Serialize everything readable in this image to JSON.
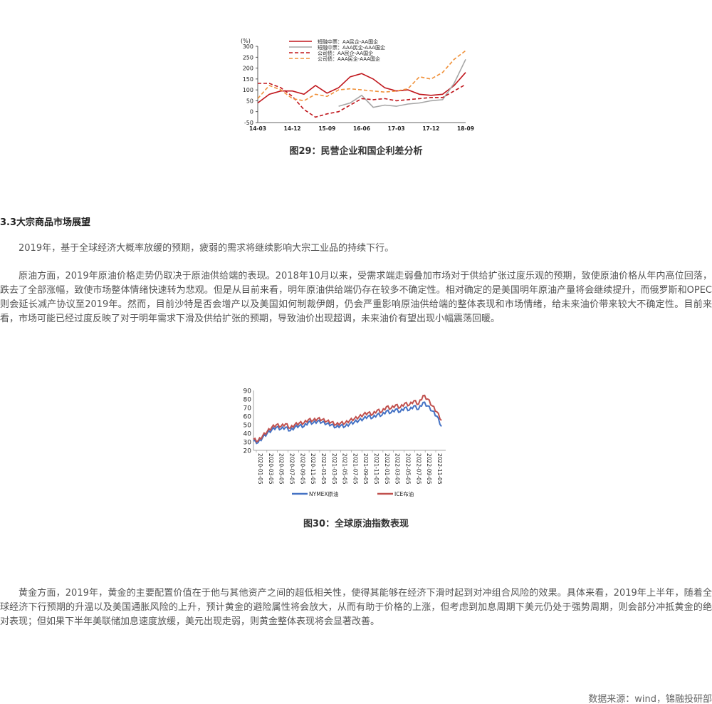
{
  "fig29": {
    "caption": "图29：民营企业和国企利差分析",
    "chart_data": {
      "type": "line",
      "unit": "(%)",
      "x_ticks": [
        "14-03",
        "14-12",
        "15-09",
        "16-06",
        "17-03",
        "17-12",
        "18-09"
      ],
      "ylim": [
        -50,
        300
      ],
      "y_ticks": [
        -50,
        0,
        50,
        100,
        150,
        200,
        250,
        300
      ],
      "x": [
        "14-03",
        "14-06",
        "14-09",
        "14-12",
        "15-03",
        "15-06",
        "15-09",
        "15-12",
        "16-03",
        "16-06",
        "16-09",
        "16-12",
        "17-03",
        "17-06",
        "17-09",
        "17-12",
        "18-03",
        "18-06",
        "18-09"
      ],
      "series": [
        {
          "name": "短融中票：AA民企-AA国企",
          "color": "#c0161c",
          "dash": "solid",
          "values": [
            40,
            80,
            95,
            95,
            80,
            120,
            85,
            110,
            160,
            175,
            150,
            110,
            95,
            100,
            80,
            75,
            80,
            120,
            180
          ]
        },
        {
          "name": "短融中票：AAA民企-AAA国企",
          "color": "#a6a6a6",
          "dash": "solid",
          "values": [
            null,
            null,
            null,
            null,
            null,
            null,
            null,
            25,
            40,
            75,
            20,
            30,
            25,
            35,
            40,
            50,
            55,
            130,
            240
          ]
        },
        {
          "name": "公司债：AA民企-AA国企",
          "color": "#c0161c",
          "dash": "dash",
          "values": [
            130,
            130,
            110,
            70,
            10,
            -25,
            -10,
            0,
            30,
            60,
            55,
            60,
            50,
            55,
            60,
            65,
            65,
            95,
            125
          ]
        },
        {
          "name": "公司债：AAA民企-AAA国企",
          "color": "#f0913a",
          "dash": "dash",
          "values": [
            60,
            120,
            100,
            60,
            50,
            80,
            70,
            100,
            105,
            100,
            95,
            90,
            95,
            105,
            160,
            150,
            180,
            240,
            280
          ]
        }
      ]
    }
  },
  "section": {
    "title": "3.3大宗商品市场展望"
  },
  "paragraphs": {
    "p1": "2019年，基于全球经济大概率放缓的预期，疲弱的需求将继续影响大宗工业品的持续下行。",
    "p2": "原油方面，2019年原油价格走势仍取决于原油供给端的表现。2018年10月以来，受需求端走弱叠加市场对于供给扩张过度乐观的预期，致使原油价格从年内高位回落，跌去了全部涨幅，致使市场整体情绪快速转为悲观。但是从目前来看，明年原油供给端仍存在较多不确定性。相对确定的是美国明年原油产量将会继续提升，而俄罗斯和OPEC则会延长减产协议至2019年。然而，目前沙特是否会增产以及美国如何制裁伊朗，仍会严重影响原油供给端的整体表现和市场情绪，给未来油价带来较大不确定性。目前来看，市场可能已经过度反映了对于明年需求下滑及供给扩张的预期，导致油价出现超调，未来油价有望出现小幅震荡回暖。",
    "p3": "黄金方面，2019年，黄金的主要配置价值在于他与其他资产之间的超低相关性，使得其能够在经济下滑时起到对冲组合风险的效果。具体来看，2019年上半年，随着全球经济下行预期的升温以及美国通胀风险的上升，预计黄金的避险属性将会放大，从而有助于价格的上涨，但考虑到加息周期下美元仍处于强势周期，则会部分冲抵黄金的绝对表现；但如果下半年美联储加息速度放缓，美元出现走弱，则黄金整体表现将会显著改善。"
  },
  "fig30": {
    "caption": "图30：全球原油指数表现",
    "chart_data": {
      "type": "line",
      "ylim": [
        20,
        90
      ],
      "y_ticks": [
        20,
        30,
        40,
        50,
        60,
        70,
        80,
        90
      ],
      "x_ticks": [
        "2020-01-05",
        "2020-03-05",
        "2020-05-05",
        "2020-07-05",
        "2020-09-05",
        "2020-11-05",
        "2021-01-05",
        "2021-03-05",
        "2021-05-05",
        "2021-07-05",
        "2021-09-05",
        "2021-11-05",
        "2022-01-05",
        "2022-03-05",
        "2022-05-05",
        "2022-07-05",
        "2022-09-05",
        "2022-11-05"
      ],
      "series": [
        {
          "name": "NYMEX原油",
          "color": "#4472c4",
          "values": [
            31,
            29,
            35,
            40,
            44,
            47,
            45,
            47,
            43,
            47,
            49,
            48,
            53,
            52,
            54,
            53,
            51,
            50,
            47,
            49,
            48,
            51,
            53,
            55,
            57,
            60,
            58,
            62,
            61,
            66,
            64,
            68,
            65,
            70,
            67,
            72,
            68,
            76,
            72,
            66,
            60,
            48
          ]
        },
        {
          "name": "ICE布油",
          "color": "#c0504d",
          "values": [
            33,
            31,
            37,
            42,
            47,
            50,
            48,
            51,
            46,
            50,
            52,
            52,
            56,
            55,
            57,
            56,
            54,
            53,
            50,
            52,
            52,
            55,
            57,
            59,
            62,
            64,
            62,
            67,
            65,
            71,
            69,
            73,
            70,
            75,
            73,
            78,
            74,
            84,
            80,
            72,
            65,
            55
          ]
        }
      ]
    }
  },
  "source": "数据来源：wind，锦融投研部"
}
